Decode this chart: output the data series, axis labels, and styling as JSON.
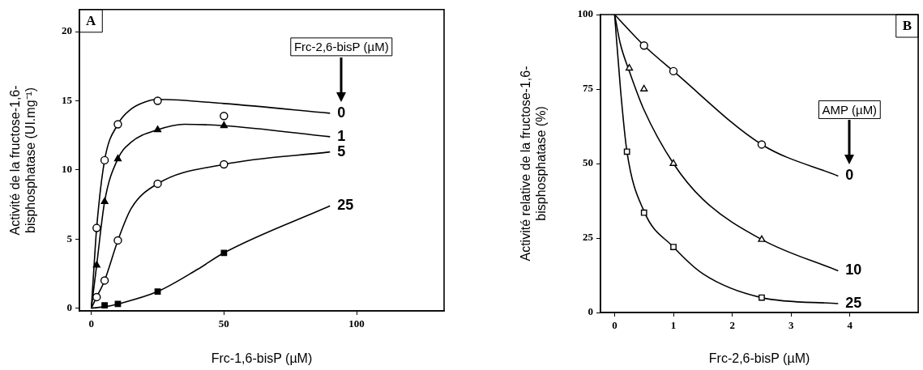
{
  "chart_data": [
    {
      "type": "line",
      "xlabel": "Frc-1,6-bisP (µM)",
      "ylabel": "Activité de la fructose-1,6-\nbisphosphatase (UI.mg⁻¹)",
      "xlim": [
        -4.5,
        133
      ],
      "xticks": [
        0,
        50,
        100
      ],
      "ylim": [
        -0.2,
        21.6
      ],
      "yticks": [
        0,
        5,
        10,
        15,
        20
      ],
      "legend_title": "Frc-2,6-bisP (µM)",
      "annotations": [
        "A"
      ],
      "legend": false,
      "grid": false,
      "series": [
        {
          "name": "0",
          "type": "line",
          "color": "#000000",
          "marker": "none",
          "x": [
            0,
            1,
            2,
            5,
            10,
            15,
            20,
            25,
            50,
            90
          ],
          "values": [
            0,
            3.0,
            5.8,
            10.7,
            13.3,
            14.4,
            14.9,
            15.1,
            14.8,
            14.1
          ]
        },
        {
          "name": "1",
          "type": "line",
          "color": "#000000",
          "marker": "none",
          "x": [
            0,
            2,
            5,
            10,
            15,
            25,
            35,
            50,
            90
          ],
          "values": [
            0,
            3.1,
            7.7,
            10.8,
            12.0,
            12.9,
            13.3,
            13.2,
            12.4
          ]
        },
        {
          "name": "5",
          "type": "line",
          "color": "#000000",
          "marker": "none",
          "x": [
            0,
            2,
            5,
            10,
            15,
            25,
            50,
            90
          ],
          "values": [
            0,
            0.8,
            2.0,
            4.9,
            7.2,
            9.0,
            10.4,
            11.3
          ]
        },
        {
          "name": "25",
          "type": "line",
          "color": "#000000",
          "marker": "none",
          "x": [
            0,
            5,
            10,
            25,
            40,
            50,
            90
          ],
          "values": [
            0,
            0.1,
            0.3,
            1.2,
            2.8,
            4.0,
            7.4
          ]
        },
        {
          "type": "scatter",
          "color": "#000000",
          "marker": "circle",
          "x": [
            2,
            5,
            10,
            25,
            50
          ],
          "values": [
            5.8,
            10.7,
            13.3,
            15.0,
            13.9
          ]
        },
        {
          "type": "scatter",
          "color": "#000000",
          "marker": "triangle",
          "x": [
            2,
            5,
            10,
            25,
            50
          ],
          "values": [
            3.1,
            7.7,
            10.8,
            12.9,
            13.2
          ]
        },
        {
          "type": "scatter",
          "color": "#000000",
          "marker": "circle",
          "x": [
            2,
            5,
            10,
            25,
            50
          ],
          "values": [
            0.8,
            2.0,
            4.9,
            9.0,
            10.4
          ]
        },
        {
          "type": "scatter",
          "color": "#000000",
          "marker": "square",
          "x": [
            5,
            10,
            25,
            50
          ],
          "values": [
            0.2,
            0.3,
            1.2,
            4.0
          ]
        }
      ]
    },
    {
      "type": "line",
      "xlabel": "Frc-2,6-bisP (µM)",
      "ylabel": "Activité relative de la fructose-1,6-\nbisphosphatase (%)",
      "xlim": [
        -0.24,
        5.16
      ],
      "xticks": [
        0,
        1,
        2,
        3,
        4
      ],
      "ylim": [
        0,
        100
      ],
      "yticks": [
        0,
        25,
        50,
        75,
        100
      ],
      "legend_title": "AMP (µM)",
      "annotations": [
        "B"
      ],
      "legend": false,
      "grid": false,
      "series": [
        {
          "name": "0",
          "type": "line",
          "color": "#000000",
          "marker": "none",
          "x": [
            0,
            0.5,
            1,
            2.5,
            3.8
          ],
          "values": [
            100,
            89.6,
            81,
            56.4,
            45.8
          ]
        },
        {
          "name": "10",
          "type": "line",
          "color": "#000000",
          "marker": "none",
          "x": [
            0,
            0.1,
            0.25,
            0.5,
            1,
            1.5,
            2.5,
            3.8
          ],
          "values": [
            100,
            90,
            81,
            68,
            50,
            38,
            24.5,
            14
          ]
        },
        {
          "name": "25",
          "type": "line",
          "color": "#000000",
          "marker": "none",
          "x": [
            0,
            0.1,
            0.21,
            0.5,
            1,
            1.5,
            2.5,
            3.8
          ],
          "values": [
            100,
            75,
            54,
            34,
            22,
            13,
            5,
            3
          ]
        },
        {
          "type": "scatter",
          "color": "#000000",
          "marker": "circle",
          "x": [
            0.5,
            1,
            2.5
          ],
          "values": [
            89.6,
            81,
            56.4
          ]
        },
        {
          "type": "scatter",
          "color": "#000000",
          "marker": "triangle",
          "x": [
            0.25,
            0.5,
            1,
            2.5
          ],
          "values": [
            82,
            75,
            50,
            24.5
          ]
        },
        {
          "type": "scatter",
          "color": "#000000",
          "marker": "square",
          "x": [
            0.21,
            0.5,
            1,
            2.5
          ],
          "values": [
            54,
            33.5,
            22,
            5
          ]
        }
      ]
    }
  ]
}
